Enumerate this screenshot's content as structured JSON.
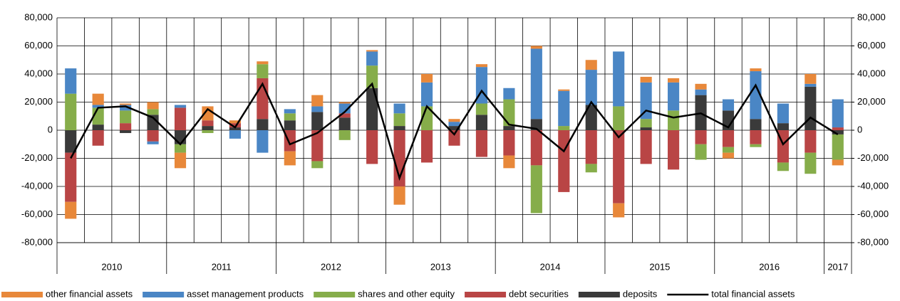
{
  "chart_data": {
    "type": "bar",
    "stacked": true,
    "categories": [
      "2010",
      null,
      null,
      null,
      "2011",
      null,
      null,
      null,
      "2012",
      null,
      null,
      null,
      "2013",
      null,
      null,
      null,
      "2014",
      null,
      null,
      null,
      "2015",
      null,
      null,
      null,
      "2016",
      null,
      null,
      null,
      "2017"
    ],
    "series": [
      {
        "name": "other financial assets",
        "color": "#e8883a",
        "values": [
          -12000,
          8000,
          1000,
          5000,
          -11000,
          10000,
          2000,
          2000,
          -10000,
          8000,
          1000,
          1000,
          -13000,
          6000,
          2000,
          2000,
          -9000,
          2000,
          1000,
          7000,
          -10000,
          4000,
          3000,
          4000,
          -4000,
          2000,
          0,
          7000,
          -4000
        ]
      },
      {
        "name": "asset management products",
        "color": "#4a86c5",
        "values": [
          18000,
          2000,
          4000,
          -2000,
          2000,
          0,
          -6000,
          -16000,
          3000,
          4000,
          7000,
          10000,
          7000,
          17000,
          3000,
          26000,
          8000,
          50000,
          25000,
          25000,
          39000,
          26000,
          20000,
          4000,
          8000,
          34000,
          14000,
          2000,
          20000
        ]
      },
      {
        "name": "shares and other equity",
        "color": "#86ad4a",
        "values": [
          26000,
          12000,
          9000,
          4000,
          -6000,
          -2000,
          0,
          10000,
          5000,
          -5000,
          -7000,
          16000,
          9000,
          17000,
          0,
          8000,
          19000,
          -34000,
          3000,
          -6000,
          17000,
          6000,
          14000,
          -11000,
          -4000,
          -2000,
          -6000,
          -15000,
          -18000
        ]
      },
      {
        "name": "debt securities",
        "color": "#b94545",
        "values": [
          -35000,
          -11000,
          5000,
          -8000,
          16000,
          4000,
          3000,
          29000,
          -15000,
          -22000,
          3000,
          -24000,
          -40000,
          -23000,
          -11000,
          -19000,
          -18000,
          -25000,
          -44000,
          -24000,
          -52000,
          -24000,
          -28000,
          -10000,
          -12000,
          -10000,
          -23000,
          -16000,
          2000
        ]
      },
      {
        "name": "deposits",
        "color": "#3a3a3a",
        "values": [
          -16000,
          4000,
          -2000,
          11000,
          -10000,
          3000,
          2000,
          8000,
          7000,
          13000,
          9000,
          30000,
          3000,
          0,
          3000,
          11000,
          3000,
          8000,
          0,
          18000,
          0,
          2000,
          0,
          25000,
          14000,
          8000,
          5000,
          31000,
          -3000
        ]
      },
      {
        "name": "total financial assets",
        "color": "#000000",
        "type": "line",
        "values": [
          -20000,
          16000,
          17000,
          9000,
          -10000,
          15000,
          2000,
          33000,
          -10000,
          -2000,
          13000,
          33000,
          -34000,
          17000,
          -3000,
          28000,
          4000,
          1000,
          -15000,
          20000,
          -5000,
          14000,
          9000,
          12000,
          2000,
          32000,
          -10000,
          9000,
          -3000
        ]
      }
    ],
    "ylim": [
      -80000,
      80000
    ],
    "yticks": [
      {
        "value": -80000,
        "label": "-80,000"
      },
      {
        "value": -60000,
        "label": "-60,000"
      },
      {
        "value": -40000,
        "label": "-40,000"
      },
      {
        "value": -20000,
        "label": "-20,000"
      },
      0,
      {
        "value": 20000,
        "label": "20,000"
      },
      {
        "value": 40000,
        "label": "40,000"
      },
      {
        "value": 60000,
        "label": "60,000"
      },
      {
        "value": 80000,
        "label": "80,000"
      }
    ],
    "y2lim": [
      -80000,
      80000
    ],
    "y2ticks": [
      {
        "value": -80000,
        "label": "-80,000"
      },
      {
        "value": -60000,
        "label": "-60,000"
      },
      {
        "value": -40000,
        "label": "-40,000"
      },
      {
        "value": -20000,
        "label": "-20,000"
      },
      0,
      {
        "value": 20000,
        "label": "20,000"
      },
      {
        "value": 40000,
        "label": "40,000"
      },
      {
        "value": 60000,
        "label": "60,000"
      },
      {
        "value": 80000,
        "label": "80,000"
      }
    ],
    "grid": true,
    "legend": "bottom"
  }
}
